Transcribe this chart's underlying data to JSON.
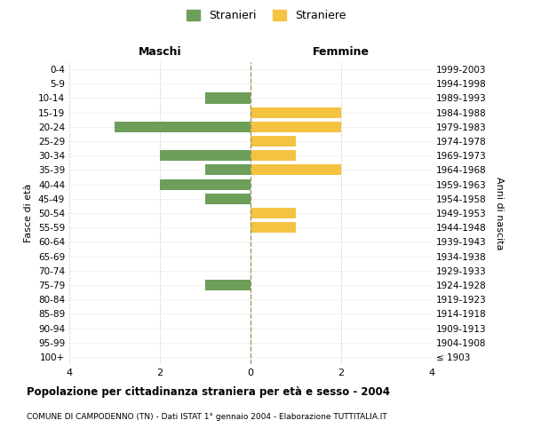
{
  "age_groups": [
    "100+",
    "95-99",
    "90-94",
    "85-89",
    "80-84",
    "75-79",
    "70-74",
    "65-69",
    "60-64",
    "55-59",
    "50-54",
    "45-49",
    "40-44",
    "35-39",
    "30-34",
    "25-29",
    "20-24",
    "15-19",
    "10-14",
    "5-9",
    "0-4"
  ],
  "birth_years": [
    "≤ 1903",
    "1904-1908",
    "1909-1913",
    "1914-1918",
    "1919-1923",
    "1924-1928",
    "1929-1933",
    "1934-1938",
    "1939-1943",
    "1944-1948",
    "1949-1953",
    "1954-1958",
    "1959-1963",
    "1964-1968",
    "1969-1973",
    "1974-1978",
    "1979-1983",
    "1984-1988",
    "1989-1993",
    "1994-1998",
    "1999-2003"
  ],
  "maschi": [
    0,
    0,
    0,
    0,
    0,
    1,
    0,
    0,
    0,
    0,
    0,
    1,
    2,
    1,
    2,
    0,
    3,
    0,
    1,
    0,
    0
  ],
  "femmine": [
    0,
    0,
    0,
    0,
    0,
    0,
    0,
    0,
    0,
    1,
    1,
    0,
    0,
    2,
    1,
    1,
    2,
    2,
    0,
    0,
    0
  ],
  "maschi_color": "#6d9e5a",
  "femmine_color": "#f5c342",
  "title": "Popolazione per cittadinanza straniera per età e sesso - 2004",
  "subtitle": "COMUNE DI CAMPODENNO (TN) - Dati ISTAT 1° gennaio 2004 - Elaborazione TUTTITALIA.IT",
  "xlabel_left": "Maschi",
  "xlabel_right": "Femmine",
  "ylabel_left": "Fasce di età",
  "ylabel_right": "Anni di nascita",
  "legend_maschi": "Stranieri",
  "legend_femmine": "Straniere",
  "xlim": 4,
  "bar_height": 0.75,
  "background_color": "#ffffff",
  "grid_color": "#cccccc",
  "center_line_color": "#999966"
}
